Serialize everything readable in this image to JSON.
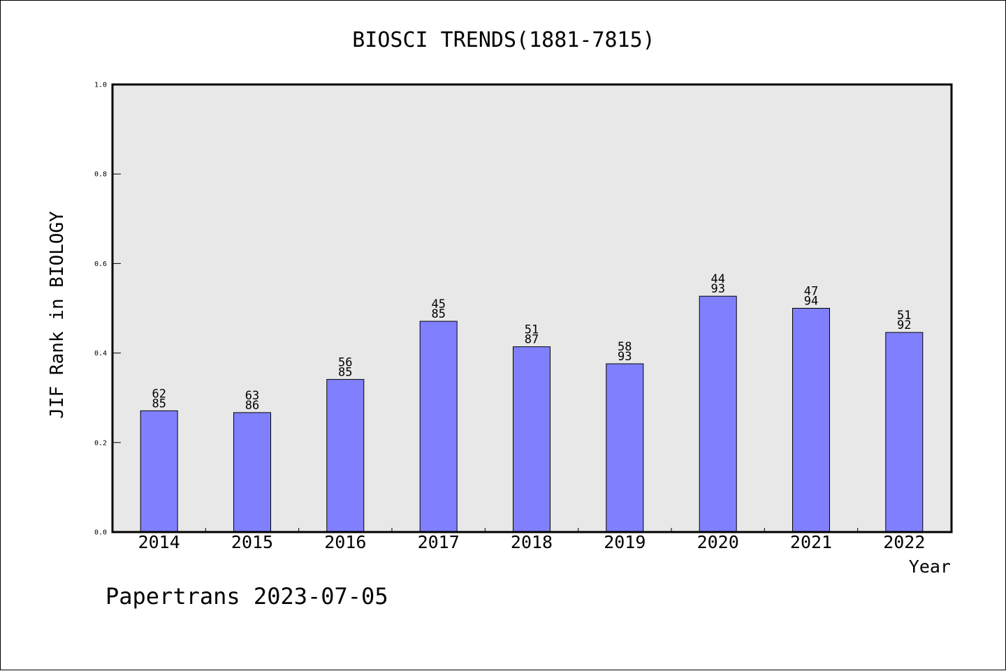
{
  "chart_data": {
    "type": "bar",
    "title": "BIOSCI TRENDS(1881-7815)",
    "xlabel": "Year",
    "ylabel": "JIF Rank in BIOLOGY",
    "ylim": [
      0,
      1.0
    ],
    "yticks": [
      "0.0",
      "0.2",
      "0.4",
      "0.6",
      "0.8",
      "1.0"
    ],
    "categories": [
      "2014",
      "2015",
      "2016",
      "2017",
      "2018",
      "2019",
      "2020",
      "2021",
      "2022"
    ],
    "values": [
      0.271,
      0.267,
      0.341,
      0.471,
      0.414,
      0.376,
      0.527,
      0.5,
      0.446
    ],
    "bar_labels": [
      [
        "62",
        "85"
      ],
      [
        "63",
        "86"
      ],
      [
        "56",
        "85"
      ],
      [
        "45",
        "85"
      ],
      [
        "51",
        "87"
      ],
      [
        "58",
        "93"
      ],
      [
        "44",
        "93"
      ],
      [
        "47",
        "94"
      ],
      [
        "51",
        "92"
      ]
    ],
    "grid": false,
    "colors": {
      "bar_fill": "#8080ff",
      "bar_stroke": "#000000",
      "plot_background": "#e8e8e8"
    }
  },
  "footer": {
    "text": "Papertrans 2023-07-05"
  }
}
